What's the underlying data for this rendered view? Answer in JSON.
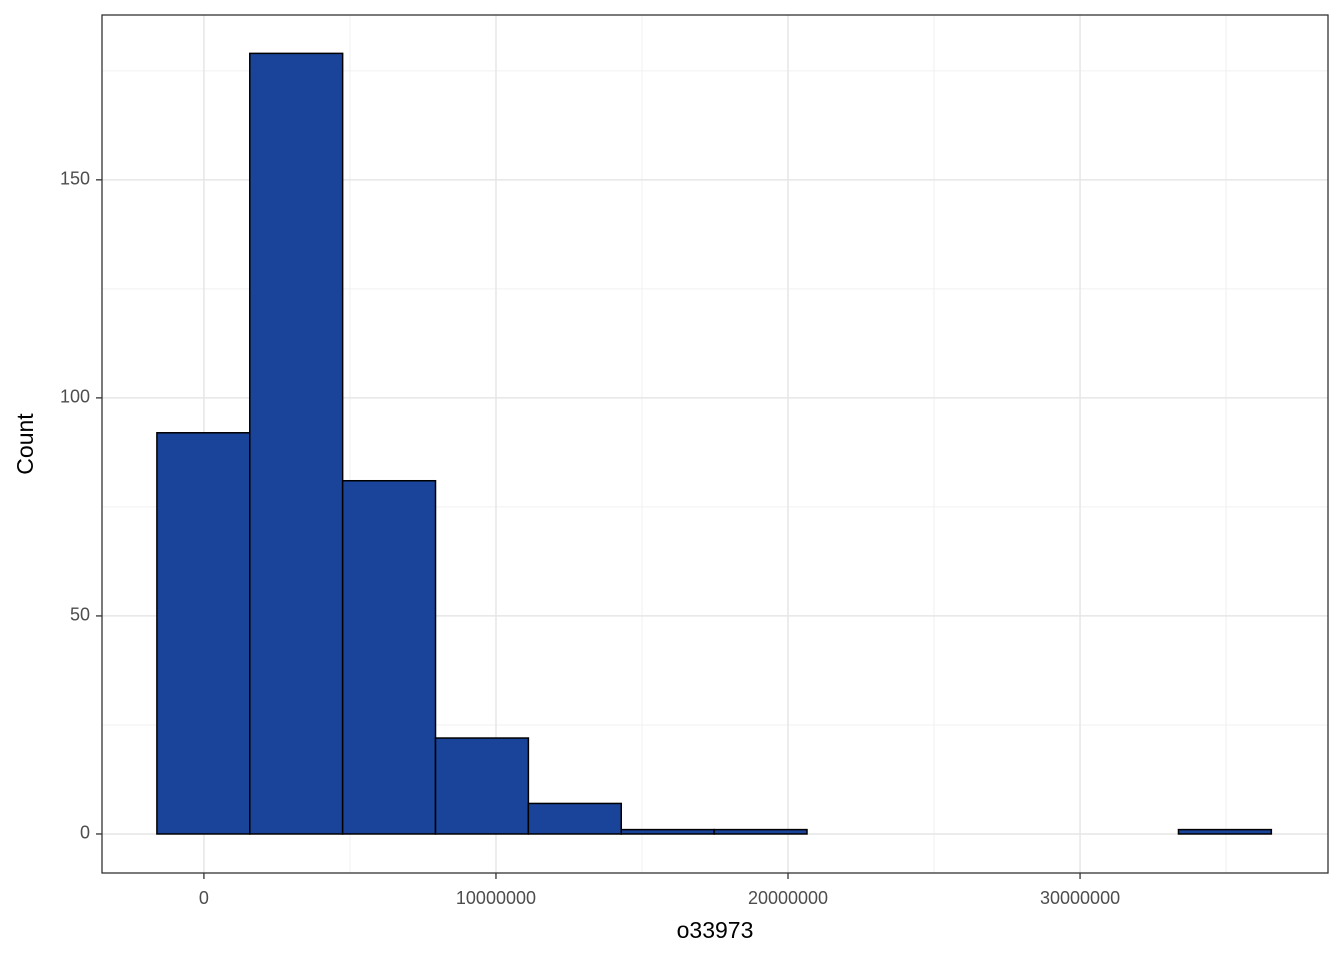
{
  "chart_data": {
    "type": "histogram",
    "x_label": "o33973",
    "y_label": "Count",
    "bins": [
      -1610000,
      1570000,
      4750000,
      7930000,
      11110000,
      14290000,
      17470000,
      20650000,
      23830000,
      27010000,
      30190000,
      33370000,
      36550000
    ],
    "values": [
      92,
      179,
      81,
      22,
      7,
      1,
      1,
      0,
      0,
      0,
      0,
      1
    ],
    "color": "#1a4499",
    "xlim": [
      -3490000,
      38490000
    ],
    "ylim": [
      -8.95,
      187.8
    ],
    "xticks": [
      0,
      10000000,
      20000000,
      30000000
    ],
    "yticks": [
      0,
      50,
      100,
      150
    ],
    "xminor": [
      5000000,
      15000000,
      25000000,
      35000000
    ],
    "yminor": [
      25,
      75,
      125,
      175
    ],
    "grid": true
  }
}
